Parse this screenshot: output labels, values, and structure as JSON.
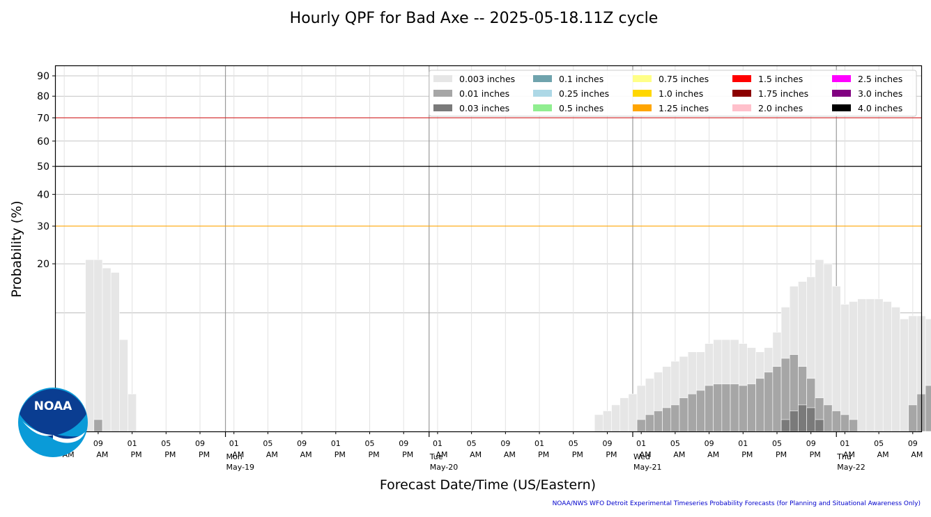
{
  "title": "Hourly QPF for Bad Axe -- 2025-05-18.11Z cycle",
  "logo_text": "NOAA",
  "credit": "NOAA/NWS WFO Detroit Experimental Timeseries Probability Forecasts (for Planning and Situational Awareness Only)",
  "colors": {
    "threshold_70": "#d62728",
    "threshold_50": "#000000",
    "threshold_30": "#ffa500",
    "grid": "#b0b0b0",
    "logo_dark": "#0a3d91",
    "logo_light": "#0a9bd8"
  },
  "chart_data": {
    "type": "bar",
    "title": "Hourly QPF for Bad Axe -- 2025-05-18.11Z cycle",
    "xlabel": "Forecast Date/Time (US/Eastern)",
    "ylabel": "Probability (%)",
    "y_scale": "sqrt",
    "ylim": [
      0,
      95
    ],
    "y_ticks": [
      20,
      30,
      40,
      50,
      60,
      70,
      80,
      90
    ],
    "y_gridlines": [
      10,
      20,
      30,
      40,
      50,
      60,
      70,
      80,
      90
    ],
    "grid": true,
    "legend_position": "top-right",
    "x_start": "2025-05-18 04:00",
    "x_end": "2025-05-22 10:00",
    "x_step_hours": 1,
    "x_tick_labels": [
      {
        "time": "2025-05-18 05:00",
        "hour": "05",
        "ampm": "AM",
        "day": ""
      },
      {
        "time": "2025-05-18 09:00",
        "hour": "09",
        "ampm": "AM",
        "day": ""
      },
      {
        "time": "2025-05-18 13:00",
        "hour": "01",
        "ampm": "PM",
        "day": ""
      },
      {
        "time": "2025-05-18 17:00",
        "hour": "05",
        "ampm": "PM",
        "day": ""
      },
      {
        "time": "2025-05-18 21:00",
        "hour": "09",
        "ampm": "PM",
        "day": ""
      },
      {
        "time": "2025-05-19 01:00",
        "hour": "01",
        "ampm": "AM",
        "day": ""
      },
      {
        "time": "2025-05-19 05:00",
        "hour": "05",
        "ampm": "AM",
        "day": ""
      },
      {
        "time": "2025-05-19 09:00",
        "hour": "09",
        "ampm": "AM",
        "day": ""
      },
      {
        "time": "2025-05-19 13:00",
        "hour": "01",
        "ampm": "PM",
        "day": ""
      },
      {
        "time": "2025-05-19 17:00",
        "hour": "05",
        "ampm": "PM",
        "day": ""
      },
      {
        "time": "2025-05-19 21:00",
        "hour": "09",
        "ampm": "PM",
        "day": ""
      },
      {
        "time": "2025-05-20 01:00",
        "hour": "01",
        "ampm": "AM",
        "day": ""
      },
      {
        "time": "2025-05-20 05:00",
        "hour": "05",
        "ampm": "AM",
        "day": ""
      },
      {
        "time": "2025-05-20 09:00",
        "hour": "09",
        "ampm": "AM",
        "day": ""
      },
      {
        "time": "2025-05-20 13:00",
        "hour": "01",
        "ampm": "PM",
        "day": ""
      },
      {
        "time": "2025-05-20 17:00",
        "hour": "05",
        "ampm": "PM",
        "day": ""
      },
      {
        "time": "2025-05-20 21:00",
        "hour": "09",
        "ampm": "PM",
        "day": ""
      },
      {
        "time": "2025-05-21 01:00",
        "hour": "01",
        "ampm": "AM",
        "day": ""
      },
      {
        "time": "2025-05-21 05:00",
        "hour": "05",
        "ampm": "AM",
        "day": ""
      },
      {
        "time": "2025-05-21 09:00",
        "hour": "09",
        "ampm": "AM",
        "day": ""
      },
      {
        "time": "2025-05-21 13:00",
        "hour": "01",
        "ampm": "PM",
        "day": ""
      },
      {
        "time": "2025-05-21 17:00",
        "hour": "05",
        "ampm": "PM",
        "day": ""
      },
      {
        "time": "2025-05-21 21:00",
        "hour": "09",
        "ampm": "PM",
        "day": ""
      },
      {
        "time": "2025-05-22 01:00",
        "hour": "01",
        "ampm": "AM",
        "day": ""
      },
      {
        "time": "2025-05-22 05:00",
        "hour": "05",
        "ampm": "AM",
        "day": ""
      },
      {
        "time": "2025-05-22 09:00",
        "hour": "09",
        "ampm": "AM",
        "day": ""
      }
    ],
    "day_markers": [
      {
        "time": "2025-05-19 00:00",
        "label": "Mon",
        "date": "May-19"
      },
      {
        "time": "2025-05-20 00:00",
        "label": "Tue",
        "date": "May-20"
      },
      {
        "time": "2025-05-21 00:00",
        "label": "Wed",
        "date": "May-21"
      },
      {
        "time": "2025-05-22 00:00",
        "label": "Thu",
        "date": "May-22"
      }
    ],
    "threshold_lines": [
      {
        "y": 70,
        "color": "#d62728"
      },
      {
        "y": 50,
        "color": "#000000"
      },
      {
        "y": 30,
        "color": "#ffa500"
      }
    ],
    "legend": [
      {
        "label": "0.003 inches",
        "color": "#e6e6e6"
      },
      {
        "label": "0.01 inches",
        "color": "#a6a6a6"
      },
      {
        "label": "0.03 inches",
        "color": "#7a7a7a"
      },
      {
        "label": "0.1 inches",
        "color": "#6fa3ad"
      },
      {
        "label": "0.25 inches",
        "color": "#add8e6"
      },
      {
        "label": "0.5 inches",
        "color": "#90ee90"
      },
      {
        "label": "0.75 inches",
        "color": "#ffff88"
      },
      {
        "label": "1.0 inches",
        "color": "#ffd700"
      },
      {
        "label": "1.25 inches",
        "color": "#ffa500"
      },
      {
        "label": "1.5 inches",
        "color": "#ff0000"
      },
      {
        "label": "1.75 inches",
        "color": "#8b0000"
      },
      {
        "label": "2.0 inches",
        "color": "#ffc0cb"
      },
      {
        "label": "2.5 inches",
        "color": "#ff00ff"
      },
      {
        "label": "3.0 inches",
        "color": "#800080"
      },
      {
        "label": "4.0 inches",
        "color": "#000000"
      }
    ],
    "series": [
      {
        "name": "0.003 inches",
        "color": "#e6e6e6",
        "start": "2025-05-18 08:00",
        "values": [
          21,
          21,
          19,
          18,
          6,
          1,
          0,
          0,
          0,
          0,
          0,
          0,
          0,
          0,
          0,
          0,
          0,
          0,
          0,
          0,
          0,
          0,
          0,
          0,
          0,
          0,
          0,
          0,
          0,
          0,
          0,
          0,
          0,
          0,
          0,
          0,
          0,
          0,
          0,
          0,
          0,
          0,
          0,
          0,
          0,
          0,
          0,
          0,
          0,
          0,
          0,
          0,
          0,
          0,
          0,
          0,
          0,
          0,
          0,
          0,
          0.2,
          0.3,
          0.5,
          0.8,
          1,
          1.5,
          2,
          2.5,
          3,
          3.5,
          4,
          4.5,
          4.5,
          5.5,
          6,
          6,
          6,
          5.5,
          5,
          4.5,
          5,
          7,
          11,
          15,
          16,
          17,
          21,
          20,
          15,
          11.5,
          12,
          12.5,
          12.5,
          12.5,
          12,
          11,
          9,
          9.5,
          9.5,
          9,
          8,
          7.5,
          8,
          10,
          11,
          12,
          13,
          13.5,
          14,
          14.5
        ],
        "value_note": "probability of QPF >= 0.003 inches (%) by hour"
      },
      {
        "name": "0.01 inches",
        "color": "#a6a6a6",
        "start": "2025-05-18 08:00",
        "values": [
          0,
          0.1,
          0,
          0,
          0,
          0,
          0,
          0,
          0,
          0,
          0,
          0,
          0,
          0,
          0,
          0,
          0,
          0,
          0,
          0,
          0,
          0,
          0,
          0,
          0,
          0,
          0,
          0,
          0,
          0,
          0,
          0,
          0,
          0,
          0,
          0,
          0,
          0,
          0,
          0,
          0,
          0,
          0,
          0,
          0,
          0,
          0,
          0,
          0,
          0,
          0,
          0,
          0,
          0,
          0,
          0,
          0,
          0,
          0,
          0,
          0,
          0,
          0,
          0,
          0,
          0.1,
          0.2,
          0.3,
          0.4,
          0.5,
          0.8,
          1,
          1.2,
          1.5,
          1.6,
          1.6,
          1.6,
          1.5,
          1.6,
          2,
          2.5,
          3,
          3.8,
          4.2,
          3,
          2,
          0.8,
          0.5,
          0.3,
          0.2,
          0.1,
          0,
          0,
          0,
          0,
          0,
          0,
          0.5,
          1,
          1.5,
          1.5,
          1.1,
          0.9,
          1,
          1.5,
          1.5,
          1.5
        ],
        "value_note": "probability of QPF >= 0.01 inches (%) by hour"
      },
      {
        "name": "0.03 inches",
        "color": "#7a7a7a",
        "start": "2025-05-18 08:00",
        "values": [
          0,
          0,
          0,
          0,
          0,
          0,
          0,
          0,
          0,
          0,
          0,
          0,
          0,
          0,
          0,
          0,
          0,
          0,
          0,
          0,
          0,
          0,
          0,
          0,
          0,
          0,
          0,
          0,
          0,
          0,
          0,
          0,
          0,
          0,
          0,
          0,
          0,
          0,
          0,
          0,
          0,
          0,
          0,
          0,
          0,
          0,
          0,
          0,
          0,
          0,
          0,
          0,
          0,
          0,
          0,
          0,
          0,
          0,
          0,
          0,
          0,
          0,
          0,
          0,
          0,
          0,
          0,
          0,
          0,
          0,
          0,
          0,
          0,
          0,
          0,
          0,
          0,
          0,
          0,
          0,
          0,
          0,
          0.1,
          0.3,
          0.5,
          0.4,
          0.1,
          0,
          0,
          0,
          0,
          0,
          0,
          0,
          0,
          0,
          0,
          0,
          0,
          0,
          0,
          0,
          0,
          0,
          0,
          0,
          0
        ],
        "value_note": "probability of QPF >= 0.03 inches (%) by hour"
      }
    ]
  }
}
